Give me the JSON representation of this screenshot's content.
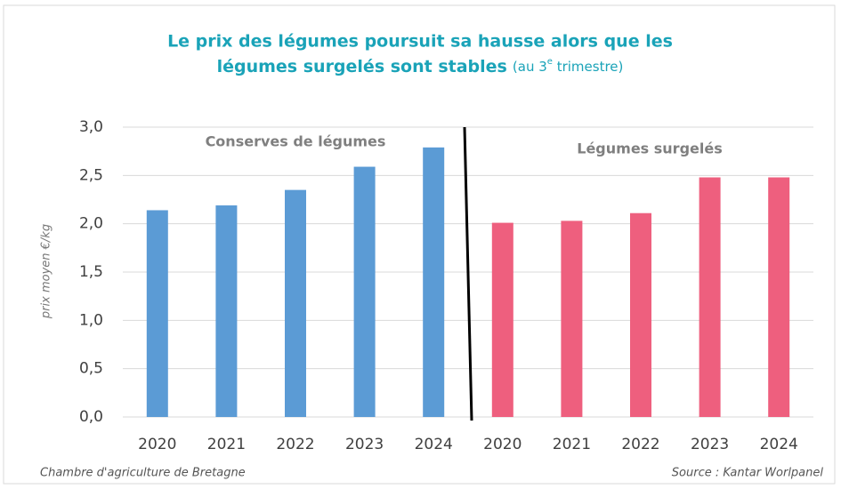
{
  "chart_data": {
    "type": "bar",
    "title": [
      "Le prix des légumes poursuit sa hausse alors que les",
      "légumes surgelés sont stables"
    ],
    "subtitle": [
      "(au 3",
      "e",
      " trimestre)"
    ],
    "y_label": "prix moyen €/kg",
    "series": [
      {
        "name": "Conserves de légumes",
        "color": "#5b9bd5",
        "categories": [
          "2020",
          "2021",
          "2022",
          "2023",
          "2024"
        ],
        "values": [
          2.14,
          2.19,
          2.35,
          2.59,
          2.79
        ]
      },
      {
        "name": "Légumes surgelés",
        "color": "#ee5f7e",
        "categories": [
          "2020",
          "2021",
          "2022",
          "2023",
          "2024"
        ],
        "values": [
          2.01,
          2.03,
          2.11,
          2.48,
          2.48
        ]
      }
    ],
    "ylim": [
      0,
      3
    ],
    "yticks": [
      {
        "value": 0,
        "label": "0,0"
      },
      {
        "value": 0.5,
        "label": "0,5"
      },
      {
        "value": 1,
        "label": "1,0"
      },
      {
        "value": 1.5,
        "label": "1,5"
      },
      {
        "value": 2,
        "label": "2,0"
      },
      {
        "value": 2.5,
        "label": "2,5"
      },
      {
        "value": 3,
        "label": "3,0"
      }
    ],
    "grid": true,
    "footer_left": "Chambre d'agriculture de Bretagne",
    "footer_right": "Source : Kantar Worlpanel"
  }
}
